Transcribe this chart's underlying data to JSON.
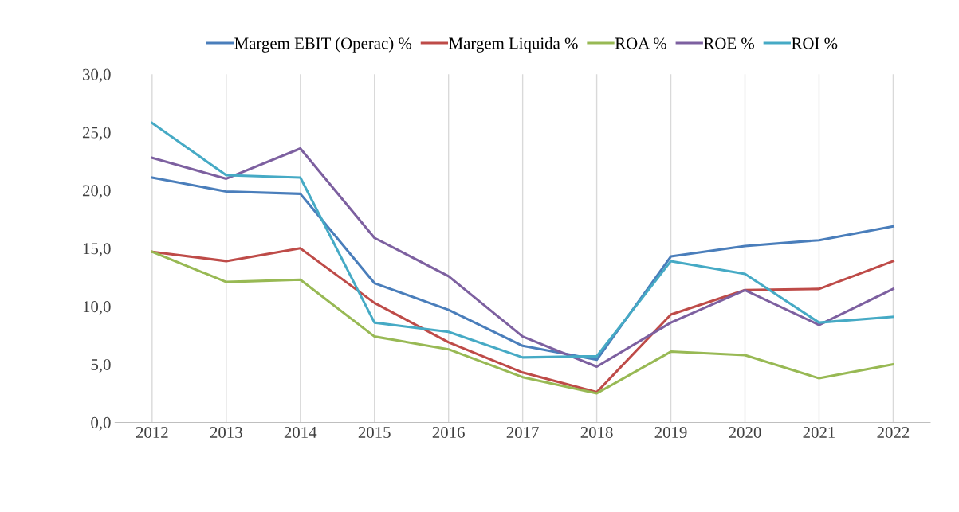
{
  "chart_data": {
    "type": "line",
    "categories": [
      "2012",
      "2013",
      "2014",
      "2015",
      "2016",
      "2017",
      "2018",
      "2019",
      "2020",
      "2021",
      "2022"
    ],
    "series": [
      {
        "name": "Margem EBIT (Operac) %",
        "color": "#4a7ebb",
        "values": [
          21.1,
          19.9,
          19.7,
          12.0,
          9.7,
          6.6,
          5.4,
          14.3,
          15.2,
          15.7,
          16.9
        ]
      },
      {
        "name": "Margem Liquida %",
        "color": "#be4b48",
        "values": [
          14.7,
          13.9,
          15.0,
          10.3,
          6.9,
          4.3,
          2.6,
          9.3,
          11.4,
          11.5,
          13.9
        ]
      },
      {
        "name": "ROA %",
        "color": "#98b954",
        "values": [
          14.7,
          12.1,
          12.3,
          7.4,
          6.3,
          3.9,
          2.5,
          6.1,
          5.8,
          3.8,
          5.0
        ]
      },
      {
        "name": "ROE %",
        "color": "#7d60a0",
        "values": [
          22.8,
          21.0,
          23.6,
          15.9,
          12.6,
          7.4,
          4.8,
          8.6,
          11.4,
          8.4,
          11.5
        ]
      },
      {
        "name": "ROI %",
        "color": "#46aac5",
        "values": [
          25.8,
          21.3,
          21.1,
          8.6,
          7.8,
          5.6,
          5.7,
          13.9,
          12.8,
          8.6,
          9.1
        ]
      }
    ],
    "ylim": [
      0,
      30
    ],
    "yticks": [
      {
        "value": 0,
        "label": "0,0"
      },
      {
        "value": 5,
        "label": "5,0"
      },
      {
        "value": 10,
        "label": "10,0"
      },
      {
        "value": 15,
        "label": "15,0"
      },
      {
        "value": 20,
        "label": "20,0"
      },
      {
        "value": 25,
        "label": "25,0"
      },
      {
        "value": 30,
        "label": "30,0"
      }
    ],
    "grid": "x",
    "legend": "top",
    "marker": "none",
    "line_style": "solid"
  }
}
